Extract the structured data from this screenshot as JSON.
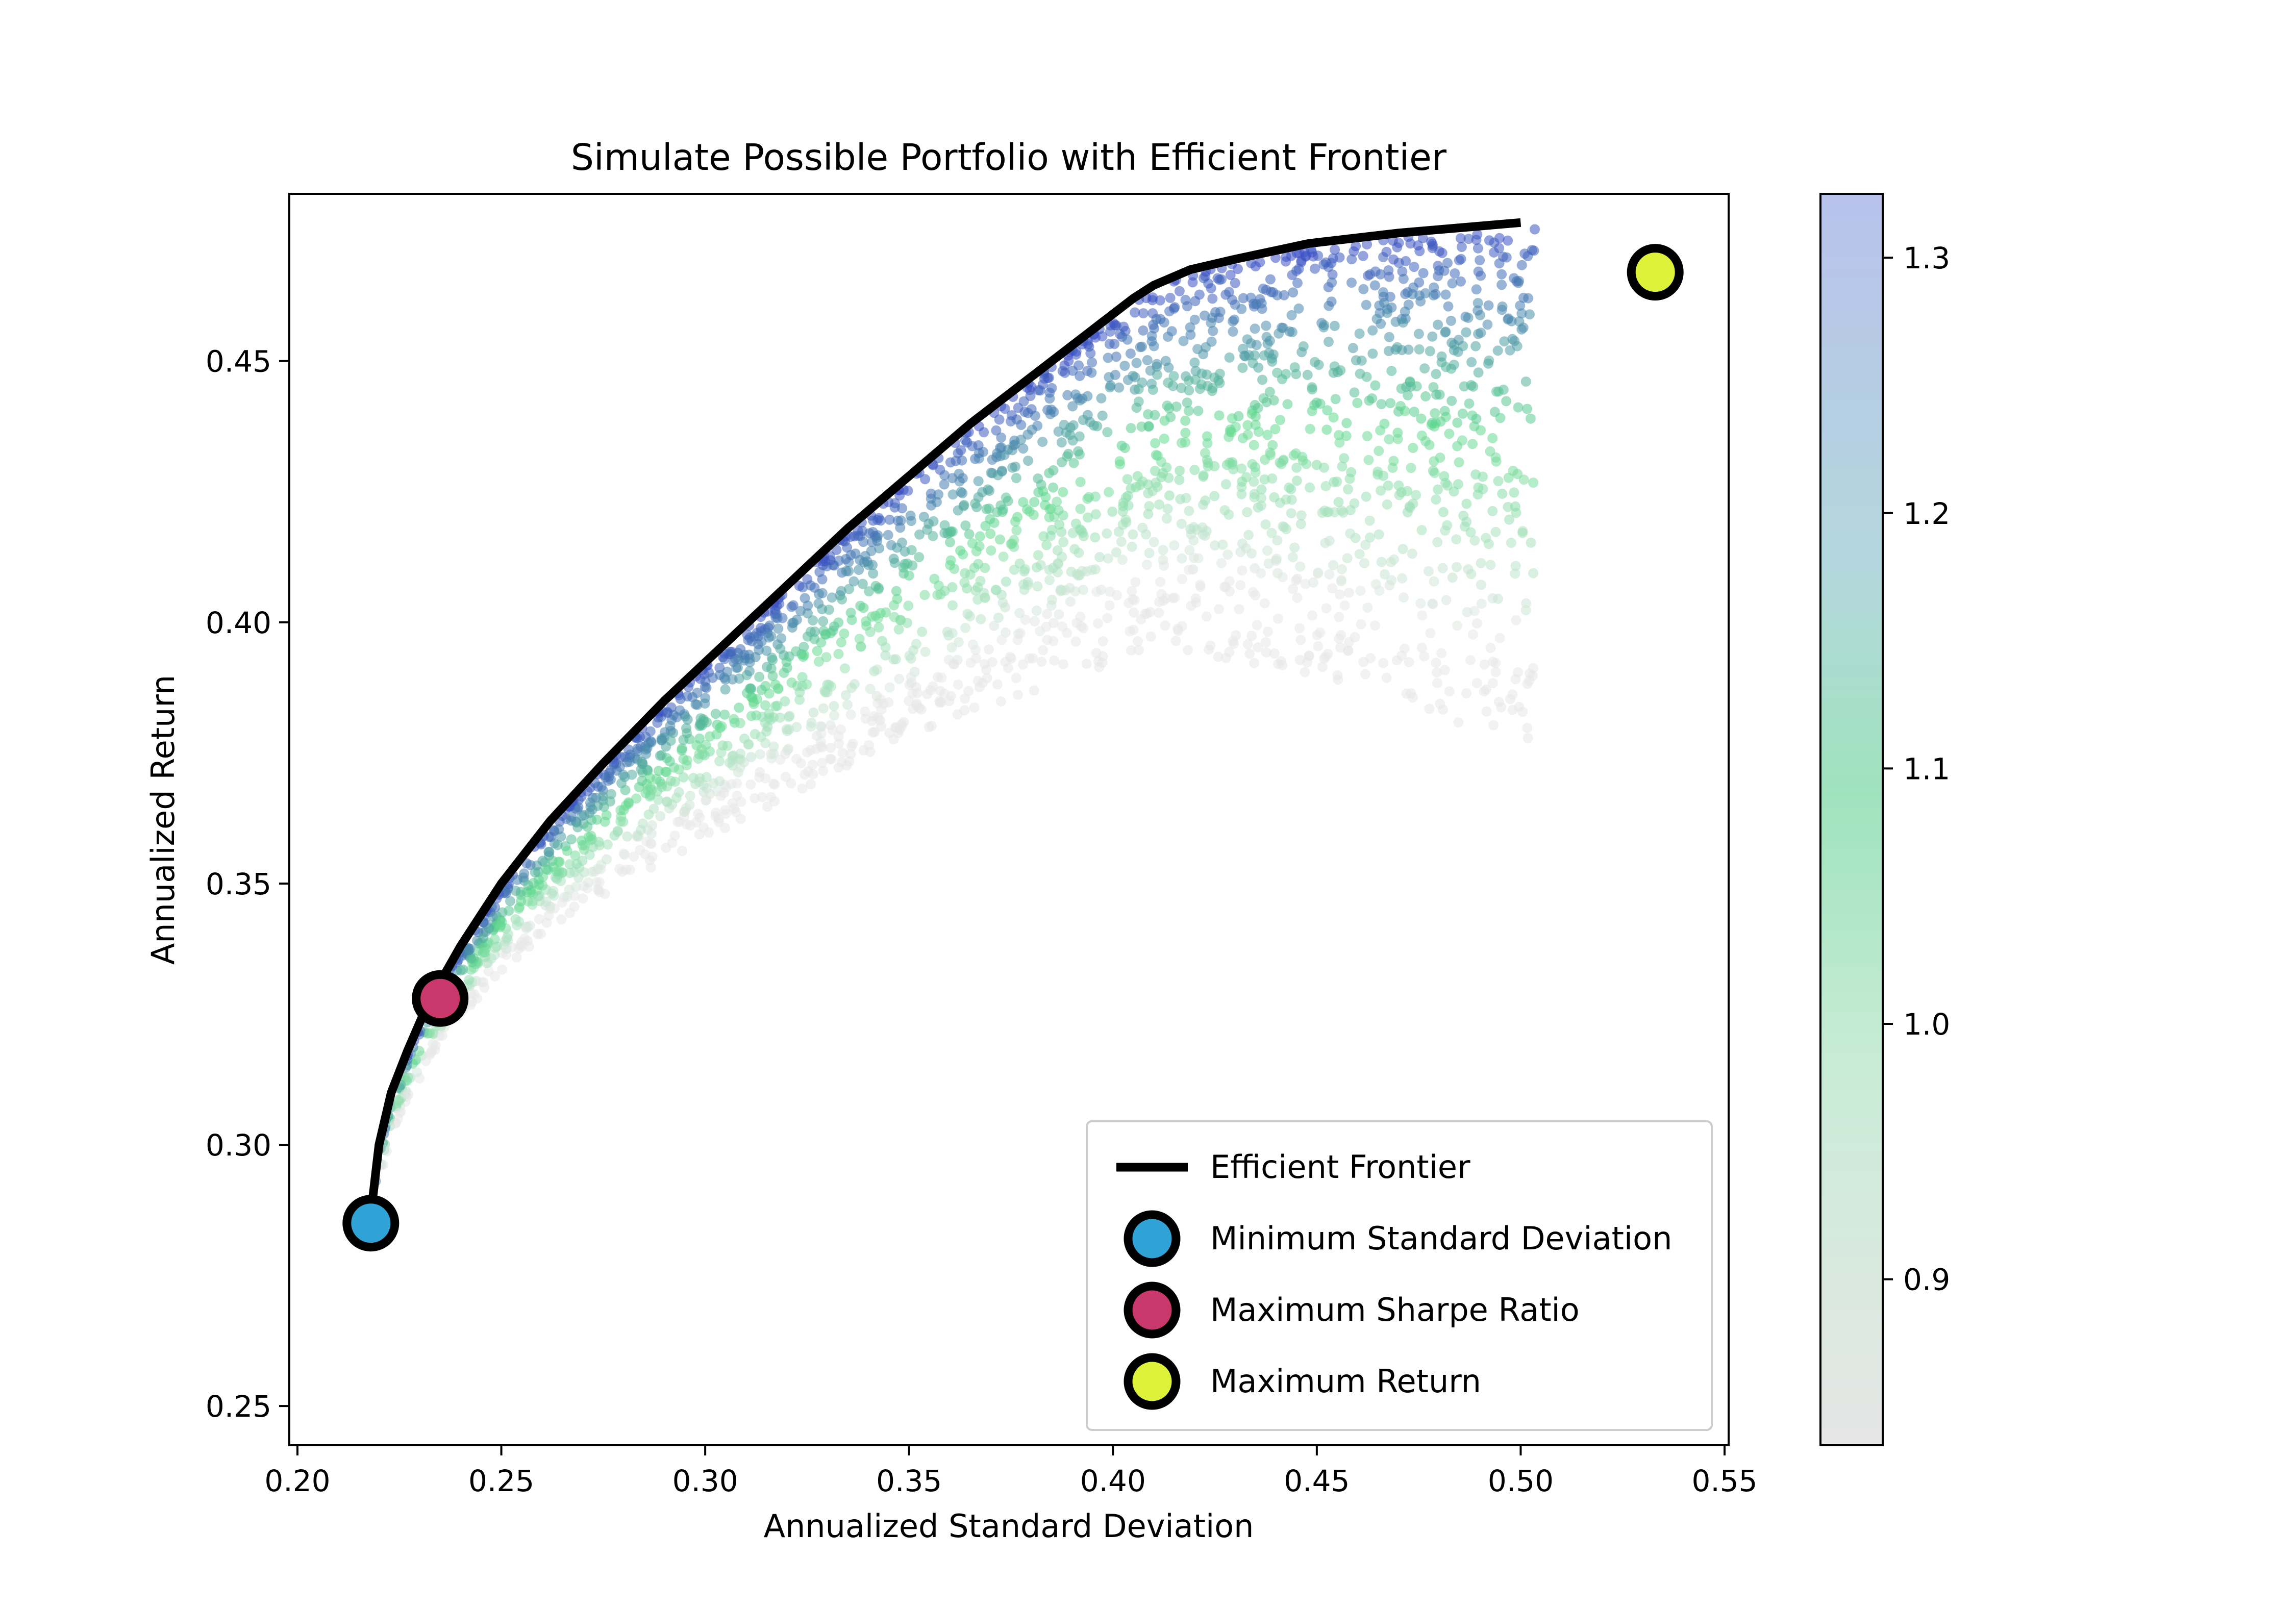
{
  "chart_data": {
    "type": "scatter",
    "title": "Simulate Possible Portfolio with Efficient Frontier",
    "xlabel": "Annualized Standard Deviation",
    "ylabel": "Annualized Return",
    "xlim": [
      0.198,
      0.551
    ],
    "ylim": [
      0.2425,
      0.482
    ],
    "xticks": [
      0.2,
      0.25,
      0.3,
      0.35,
      0.4,
      0.45,
      0.5,
      0.55
    ],
    "xtick_labels": [
      "0.20",
      "0.25",
      "0.30",
      "0.35",
      "0.40",
      "0.45",
      "0.50",
      "0.55"
    ],
    "yticks": [
      0.25,
      0.3,
      0.35,
      0.4,
      0.45
    ],
    "ytick_labels": [
      "0.25",
      "0.30",
      "0.35",
      "0.40",
      "0.45"
    ],
    "grid": false,
    "legend_position": "lower-right",
    "colorbar": {
      "range": [
        0.835,
        1.325
      ],
      "ticks": [
        0.9,
        1.0,
        1.1,
        1.2,
        1.3
      ],
      "tick_labels": [
        "0.9",
        "1.0",
        "1.1",
        "1.2",
        "1.3"
      ],
      "colors": [
        "#e8e8e8",
        "#5ed98c",
        "#3a4fc4"
      ]
    },
    "series": [
      {
        "name": "Efficient Frontier",
        "kind": "line",
        "color": "#000000",
        "x": [
          0.218,
          0.2185,
          0.22,
          0.223,
          0.227,
          0.232,
          0.24,
          0.25,
          0.262,
          0.275,
          0.29,
          0.305,
          0.32,
          0.335,
          0.35,
          0.365,
          0.38,
          0.395,
          0.405,
          0.41,
          0.419,
          0.43,
          0.448,
          0.47,
          0.5
        ],
        "y": [
          0.284,
          0.29,
          0.3,
          0.31,
          0.318,
          0.327,
          0.338,
          0.35,
          0.362,
          0.373,
          0.385,
          0.396,
          0.407,
          0.418,
          0.428,
          0.438,
          0.447,
          0.456,
          0.462,
          0.4645,
          0.4675,
          0.4695,
          0.4725,
          0.4745,
          0.4765
        ]
      },
      {
        "name": "Minimum Standard Deviation",
        "kind": "marker",
        "color": "#2fa3d6",
        "x": [
          0.218
        ],
        "y": [
          0.285
        ]
      },
      {
        "name": "Maximum Sharpe Ratio",
        "kind": "marker",
        "color": "#c8386b",
        "x": [
          0.235
        ],
        "y": [
          0.328
        ]
      },
      {
        "name": "Maximum Return",
        "kind": "marker",
        "color": "#dff23a",
        "x": [
          0.533
        ],
        "y": [
          0.467
        ]
      }
    ]
  }
}
